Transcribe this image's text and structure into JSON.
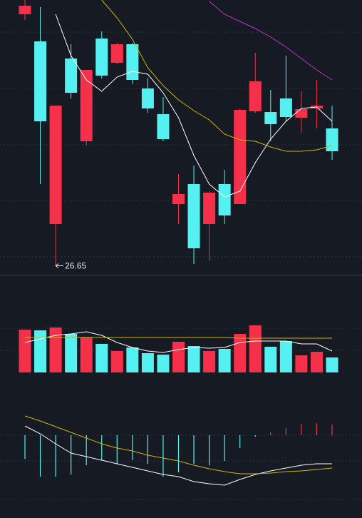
{
  "chart_data": [
    {
      "type": "candlestick",
      "open": [
        33.7,
        32.94,
        27.82,
        32.46,
        30.14,
        33.02,
        32.34,
        32.86,
        31.62,
        30.9,
        28.38,
        28.94,
        27.82,
        28.94,
        28.38,
        30.98,
        30.96,
        31.34,
        30.8,
        31.06,
        30.5
      ],
      "high": [
        34.1,
        33.9,
        31.14,
        32.86,
        32.14,
        33.22,
        32.9,
        32.9,
        31.9,
        31.38,
        29.22,
        29.46,
        28.74,
        29.34,
        31.06,
        32.62,
        31.58,
        32.54,
        31.54,
        31.86,
        31.14
      ],
      "low": [
        33.54,
        28.94,
        26.65,
        31.34,
        30.02,
        31.9,
        32.3,
        31.74,
        30.94,
        30.14,
        27.82,
        26.7,
        26.78,
        27.82,
        28.38,
        30.94,
        30.14,
        30.7,
        30.38,
        30.5,
        29.62
      ],
      "close": [
        33.94,
        30.7,
        31.14,
        31.5,
        32.14,
        31.98,
        32.86,
        31.86,
        31.06,
        30.2,
        28.66,
        27.14,
        28.7,
        28.06,
        31.02,
        31.82,
        30.62,
        30.82,
        31.04,
        31.14,
        29.86
      ],
      "up_color": "#f5304a",
      "down_color": "#55f0f2",
      "series": [
        {
          "color": "#ffffff",
          "values": [
            null,
            null,
            33.7,
            32.54,
            31.86,
            31.54,
            31.94,
            32.1,
            32.02,
            31.5,
            30.8,
            29.74,
            28.94,
            28.58,
            28.74,
            29.54,
            30.2,
            30.7,
            31.06,
            31.1,
            30.7
          ]
        },
        {
          "color": "#d4b400",
          "values": [
            null,
            null,
            null,
            null,
            null,
            34.1,
            33.6,
            33.0,
            32.2,
            31.7,
            31.3,
            31.0,
            30.74,
            30.34,
            30.18,
            30.14,
            29.98,
            29.86,
            29.86,
            29.9,
            30.02
          ]
        },
        {
          "color": "#c22fd1",
          "values": [
            null,
            null,
            null,
            null,
            null,
            null,
            null,
            null,
            null,
            null,
            null,
            null,
            34.06,
            33.7,
            33.5,
            33.3,
            33.06,
            32.78,
            32.46,
            32.14,
            31.86
          ]
        }
      ],
      "ylim": [
        26.4,
        34.1
      ],
      "annotation": {
        "text": "26.65",
        "index": 2
      }
    },
    {
      "type": "volume",
      "values": [
        60,
        59,
        63,
        54,
        49,
        40,
        30,
        35,
        27,
        25,
        43,
        37,
        30,
        33,
        54,
        66,
        36,
        44,
        24,
        29,
        21
      ],
      "series": [
        {
          "color": "#ffffff",
          "values": [
            42,
            47,
            52,
            54,
            57,
            52,
            42,
            35,
            30,
            28,
            32,
            35,
            34,
            35,
            42,
            44,
            44,
            44,
            40,
            40,
            30
          ]
        },
        {
          "color": "#d4b400",
          "values": [
            49,
            49,
            49,
            49,
            49,
            49,
            49,
            49,
            49,
            49,
            49,
            49,
            49,
            49,
            48,
            48,
            48,
            48,
            48,
            48,
            48
          ]
        }
      ],
      "ylim": [
        0,
        70
      ]
    },
    {
      "type": "macd",
      "values": [
        -0.33,
        -0.58,
        -0.58,
        -0.55,
        -0.42,
        -0.35,
        -0.4,
        -0.35,
        -0.4,
        -0.58,
        -0.52,
        -0.4,
        -0.42,
        -0.36,
        -0.18,
        -0.02,
        0.04,
        0.1,
        0.15,
        0.17,
        0.15
      ],
      "series": [
        {
          "color": "#ffffff",
          "values": [
            0.13,
            0.02,
            -0.12,
            -0.25,
            -0.3,
            -0.35,
            -0.4,
            -0.45,
            -0.5,
            -0.55,
            -0.58,
            -0.65,
            -0.68,
            -0.7,
            -0.62,
            -0.55,
            -0.5,
            -0.46,
            -0.42,
            -0.4,
            -0.4
          ]
        },
        {
          "color": "#d4b400",
          "values": [
            0.27,
            0.2,
            0.12,
            0.04,
            -0.04,
            -0.12,
            -0.18,
            -0.22,
            -0.28,
            -0.32,
            -0.36,
            -0.42,
            -0.47,
            -0.51,
            -0.54,
            -0.54,
            -0.53,
            -0.51,
            -0.5,
            -0.48,
            -0.46
          ]
        }
      ],
      "ylim": [
        -1.16,
        0.88
      ]
    }
  ]
}
